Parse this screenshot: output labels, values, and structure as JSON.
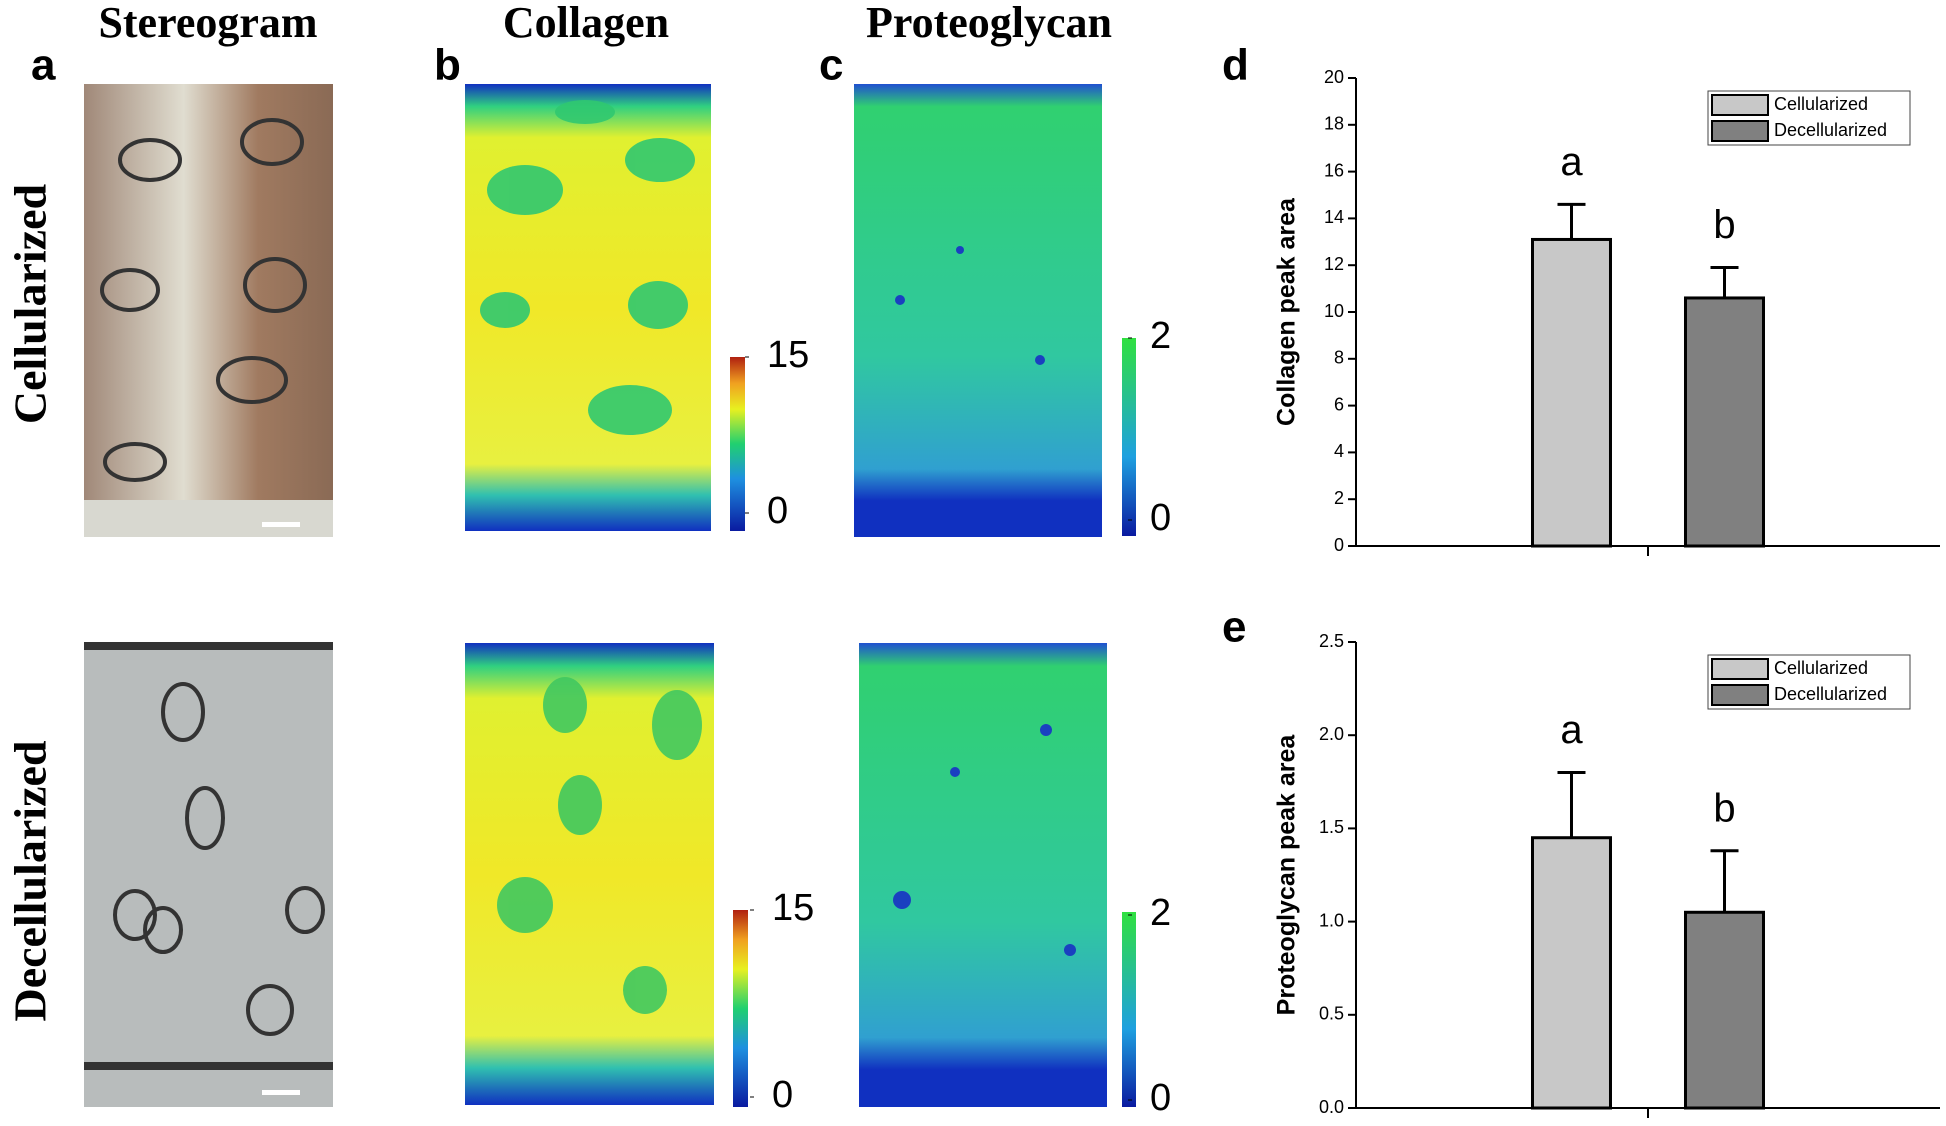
{
  "panel_labels": [
    "a",
    "b",
    "c",
    "d",
    "e"
  ],
  "column_titles": [
    "Stereogram",
    "Collagen",
    "Proteoglycan"
  ],
  "row_labels": [
    "Cellularized",
    "Decellularized"
  ],
  "colorbars": [
    {
      "ticks": [
        0,
        15
      ]
    },
    {
      "ticks": [
        0,
        2
      ]
    },
    {
      "ticks": [
        0,
        15
      ]
    },
    {
      "ticks": [
        0,
        2
      ]
    }
  ],
  "chart_data": [
    {
      "type": "bar",
      "ylabel": "Collagen peak area",
      "ylim": [
        0,
        20
      ],
      "yticks": [
        0,
        2,
        4,
        6,
        8,
        10,
        12,
        14,
        16,
        18,
        20
      ],
      "legend": "upper right",
      "series": [
        {
          "name": "Cellularized",
          "color": "#c8c8c8",
          "values": [
            13.1
          ],
          "errors": [
            1.5
          ],
          "annotations": [
            "a"
          ]
        },
        {
          "name": "Decellularized",
          "color": "#808080",
          "values": [
            10.6
          ],
          "errors": [
            1.3
          ],
          "annotations": [
            "b"
          ]
        }
      ]
    },
    {
      "type": "bar",
      "ylabel": "Proteoglycan peak area",
      "ylim": [
        0,
        2.5
      ],
      "yticks": [
        {
          "value": 0,
          "label": "0.0"
        },
        {
          "value": 0.5,
          "label": "0.5"
        },
        {
          "value": 1,
          "label": "1.0"
        },
        {
          "value": 1.5,
          "label": "1.5"
        },
        {
          "value": 2,
          "label": "2.0"
        },
        {
          "value": 2.5,
          "label": "2.5"
        }
      ],
      "legend": "upper right",
      "series": [
        {
          "name": "Cellularized",
          "color": "#c8c8c8",
          "values": [
            1.45
          ],
          "errors": [
            0.35
          ],
          "annotations": [
            "a"
          ]
        },
        {
          "name": "Decellularized",
          "color": "#808080",
          "values": [
            1.05
          ],
          "errors": [
            0.33
          ],
          "annotations": [
            "b"
          ]
        }
      ]
    }
  ]
}
